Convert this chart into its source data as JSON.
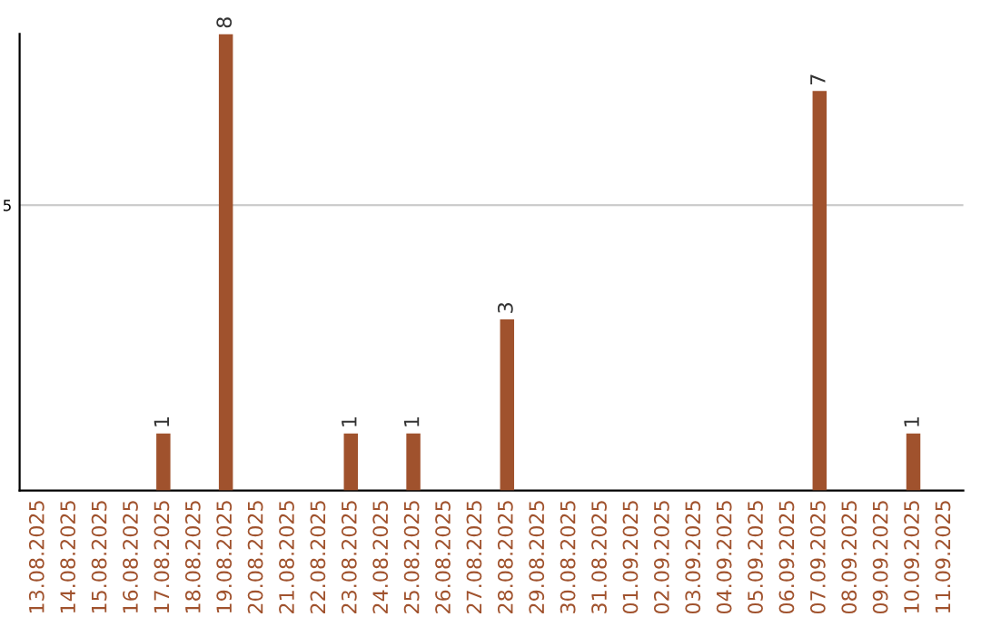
{
  "chart_data": {
    "type": "bar",
    "categories": [
      "13.08.2025",
      "14.08.2025",
      "15.08.2025",
      "16.08.2025",
      "17.08.2025",
      "18.08.2025",
      "19.08.2025",
      "20.08.2025",
      "21.08.2025",
      "22.08.2025",
      "23.08.2025",
      "24.08.2025",
      "25.08.2025",
      "26.08.2025",
      "27.08.2025",
      "28.08.2025",
      "29.08.2025",
      "30.08.2025",
      "31.08.2025",
      "01.09.2025",
      "02.09.2025",
      "03.09.2025",
      "04.09.2025",
      "05.09.2025",
      "06.09.2025",
      "07.09.2025",
      "08.09.2025",
      "09.09.2025",
      "10.09.2025",
      "11.09.2025"
    ],
    "values": [
      0,
      0,
      0,
      0,
      1,
      0,
      8,
      0,
      0,
      0,
      1,
      0,
      1,
      0,
      0,
      3,
      0,
      0,
      0,
      0,
      0,
      0,
      0,
      0,
      0,
      7,
      0,
      0,
      1,
      0
    ],
    "value_labels": [
      null,
      null,
      null,
      null,
      "1",
      null,
      "8",
      null,
      null,
      null,
      "1",
      null,
      "1",
      null,
      null,
      "3",
      null,
      null,
      null,
      null,
      null,
      null,
      null,
      null,
      null,
      "7",
      null,
      null,
      "1",
      null
    ],
    "color": "#a0522d",
    "ylim": [
      0,
      8
    ],
    "yticks": [
      5
    ],
    "grid": "y"
  }
}
